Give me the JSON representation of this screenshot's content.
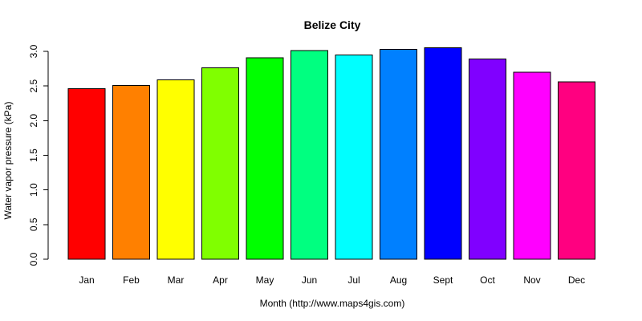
{
  "chart_data": {
    "type": "bar",
    "title": "Belize City",
    "xlabel": "Month (http://www.maps4gis.com)",
    "ylabel": "Water vapor pressure (kPa)",
    "categories": [
      "Jan",
      "Feb",
      "Mar",
      "Apr",
      "May",
      "Jun",
      "Jul",
      "Aug",
      "Sept",
      "Oct",
      "Nov",
      "Dec"
    ],
    "values": [
      2.46,
      2.51,
      2.59,
      2.76,
      2.91,
      3.01,
      2.95,
      3.03,
      3.05,
      2.89,
      2.7,
      2.56
    ],
    "colors": [
      "#FF0000",
      "#FF8000",
      "#FFFF00",
      "#80FF00",
      "#00FF00",
      "#00FF80",
      "#00FFFF",
      "#0080FF",
      "#0000FF",
      "#8000FF",
      "#FF00FF",
      "#FF0080"
    ],
    "ylim": [
      0,
      3.0
    ],
    "yticks": [
      0.0,
      0.5,
      1.0,
      1.5,
      2.0,
      2.5,
      3.0
    ],
    "ytick_labels": [
      "0.0",
      "0.5",
      "1.0",
      "1.5",
      "2.0",
      "2.5",
      "3.0"
    ],
    "grid": false,
    "legend": "none"
  }
}
